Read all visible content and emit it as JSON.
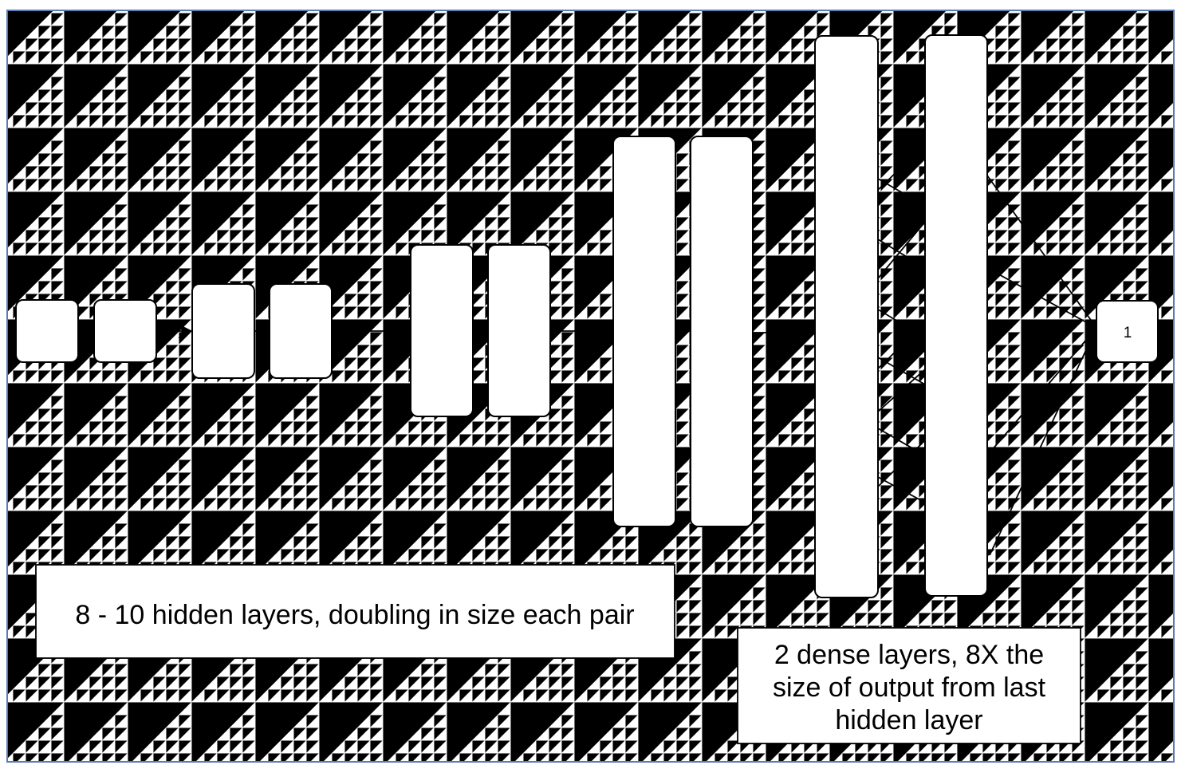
{
  "diagram": {
    "output_node_label": "1",
    "hidden_layers_caption": "8 - 10 hidden layers, doubling in size each pair",
    "dense_layers_caption": {
      "line1": "2 dense layers, 8X the",
      "line2": "size of output from last",
      "line3": "hidden layer"
    },
    "colors": {
      "frame": "#5b7bb5",
      "grid_major": "#dcdcdc",
      "grid_minor": "#e9e9e9",
      "stroke": "#000000"
    }
  }
}
